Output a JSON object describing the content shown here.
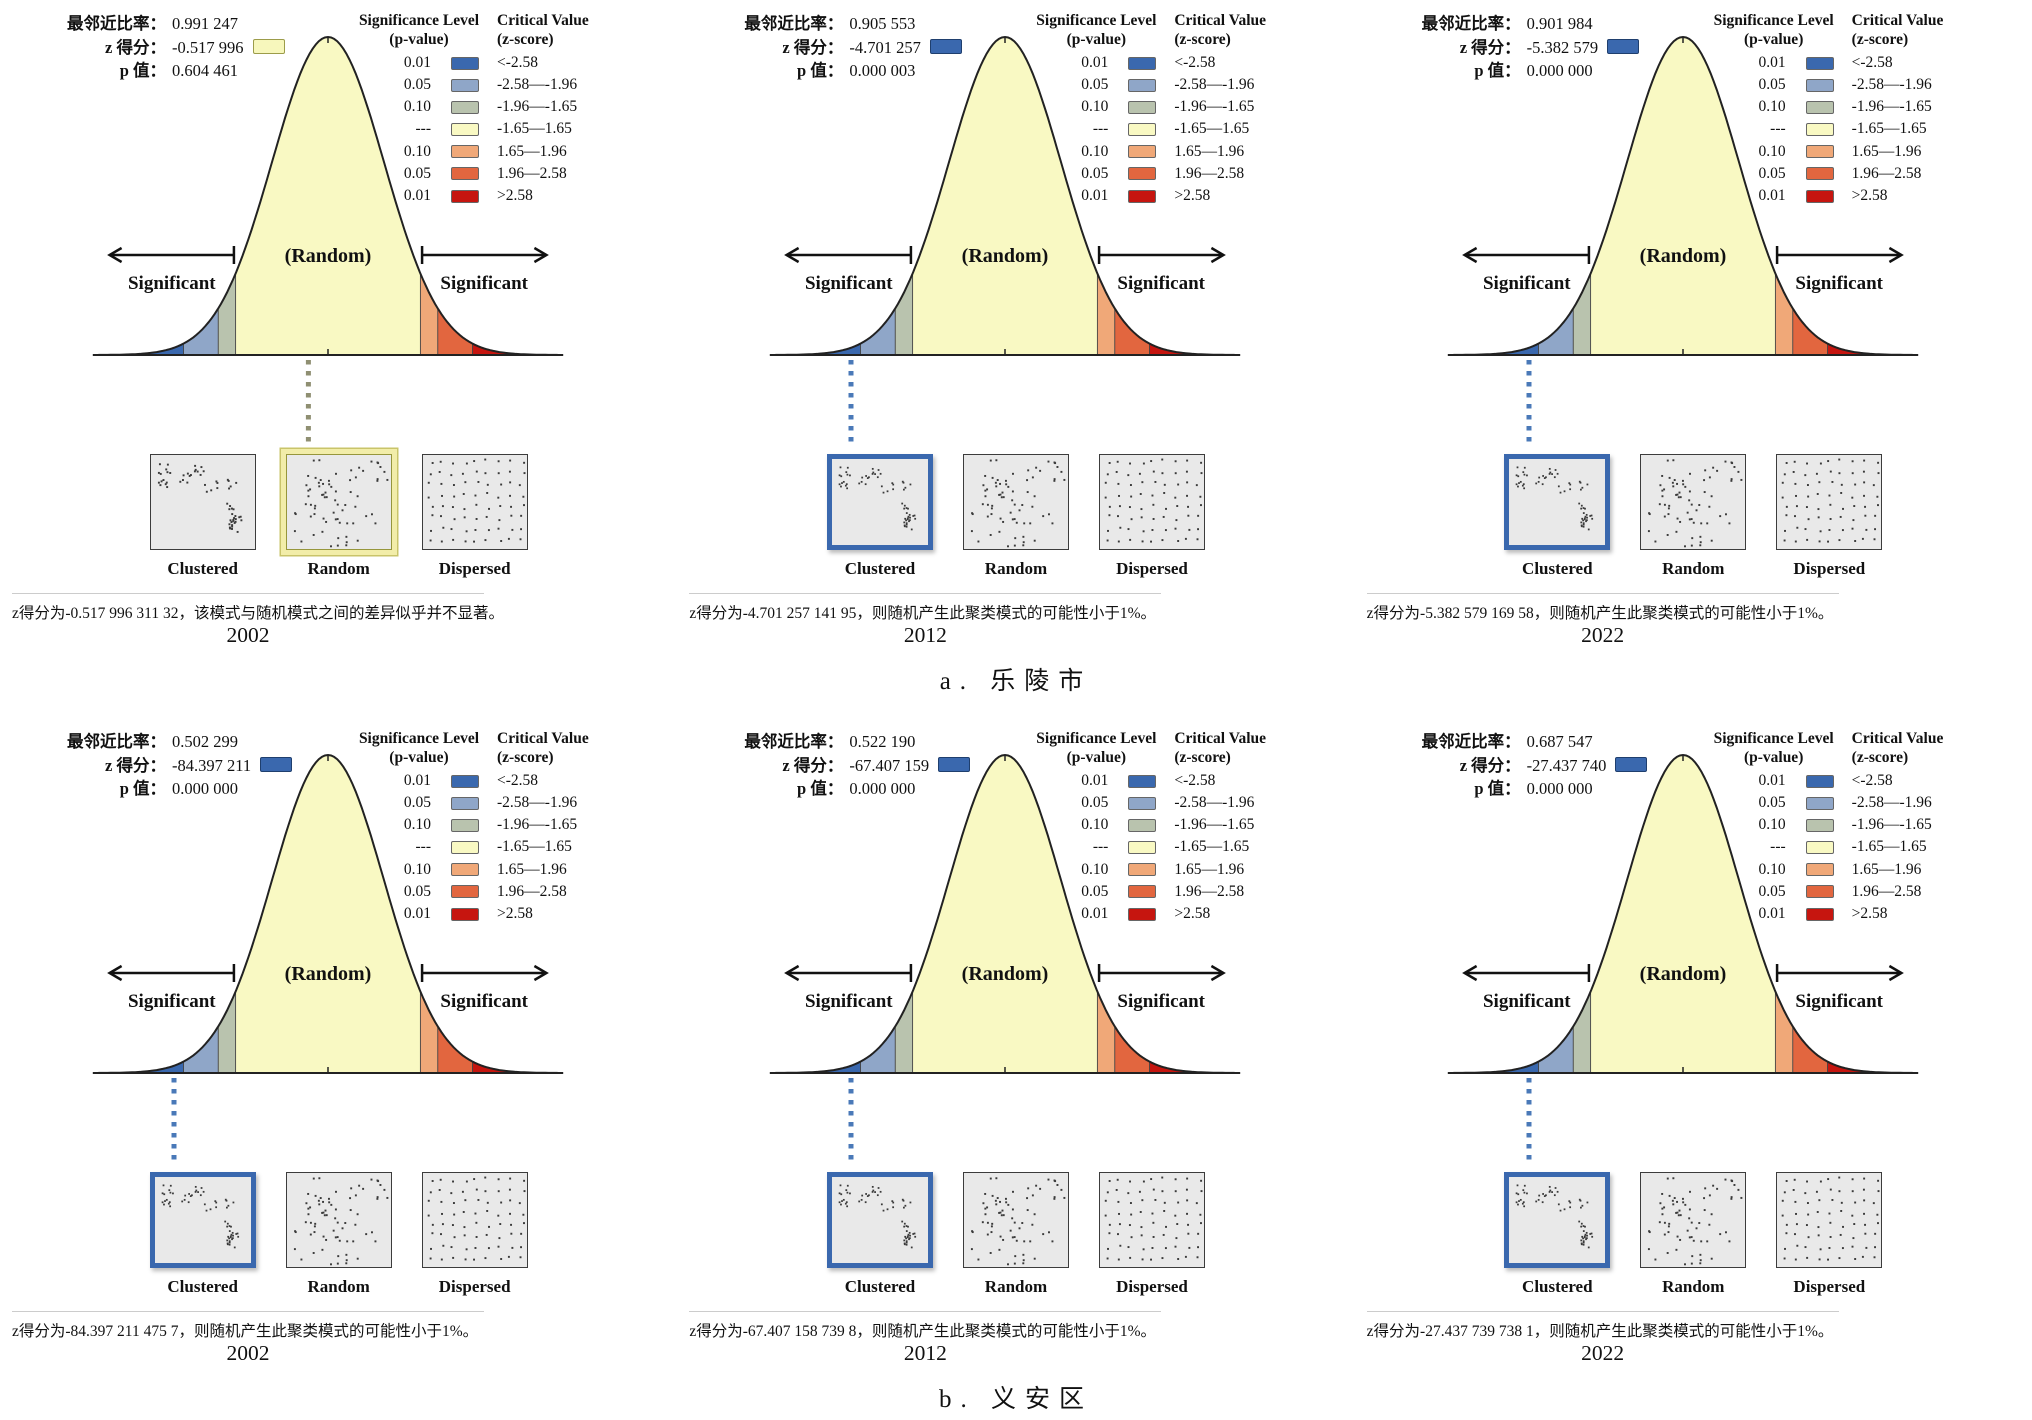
{
  "labels": {
    "ratio": "最邻近比率：",
    "z": "z 得分：",
    "p": "p 值："
  },
  "curve": {
    "random_label": "(Random)",
    "significant_label": "Significant"
  },
  "legend": {
    "sig_title": "Significance Level",
    "sig_sub": "(p-value)",
    "crit_title": "Critical Value",
    "crit_sub": "(z-score)",
    "rows": [
      {
        "p": "0.01",
        "z": "<-2.58",
        "color": "#3a68ae"
      },
      {
        "p": "0.05",
        "z": "-2.58—-1.96",
        "color": "#8fa6c8"
      },
      {
        "p": "0.10",
        "z": "-1.96—-1.65",
        "color": "#b9c3ae"
      },
      {
        "p": "---",
        "z": "-1.65—1.65",
        "color": "#f9f9c3"
      },
      {
        "p": "0.10",
        "z": "1.65—1.96",
        "color": "#f0a878"
      },
      {
        "p": "0.05",
        "z": "1.96—2.58",
        "color": "#e2663f"
      },
      {
        "p": "0.01",
        "z": ">2.58",
        "color": "#c6150f"
      }
    ]
  },
  "box_labels": [
    "Clustered",
    "Random",
    "Dispersed"
  ],
  "sections": [
    {
      "label": "a. 乐陵市",
      "panels": [
        {
          "year": "2002",
          "ratio": "0.991 247",
          "z": "-0.517 996",
          "p": "0.604 461",
          "swatch_fill": "#f7f7bc",
          "swatch_border": "#9c9c4a",
          "highlight": "Random",
          "highlight_style": "yellow",
          "dotted_color": "#8f8f72",
          "caption": "z得分为-0.517 996 311 32，该模式与随机模式之间的差异似乎并不显著。"
        },
        {
          "year": "2012",
          "ratio": "0.905 553",
          "z": "-4.701 257",
          "p": "0.000 003",
          "swatch_fill": "#3a68ae",
          "swatch_border": "#1f3f6e",
          "highlight": "Clustered",
          "highlight_style": "blue",
          "dotted_color": "#4a79b8",
          "caption": "z得分为-4.701 257 141 95，则随机产生此聚类模式的可能性小于1%。"
        },
        {
          "year": "2022",
          "ratio": "0.901 984",
          "z": "-5.382 579",
          "p": "0.000 000",
          "swatch_fill": "#3a68ae",
          "swatch_border": "#1f3f6e",
          "highlight": "Clustered",
          "highlight_style": "blue",
          "dotted_color": "#4a79b8",
          "caption": "z得分为-5.382 579 169 58，则随机产生此聚类模式的可能性小于1%。"
        }
      ]
    },
    {
      "label": "b. 义安区",
      "panels": [
        {
          "year": "2002",
          "ratio": "0.502 299",
          "z": "-84.397 211",
          "p": "0.000 000",
          "swatch_fill": "#3a68ae",
          "swatch_border": "#1f3f6e",
          "highlight": "Clustered",
          "highlight_style": "blue",
          "dotted_color": "#4a79b8",
          "caption": "z得分为-84.397 211 475 7，则随机产生此聚类模式的可能性小于1%。"
        },
        {
          "year": "2012",
          "ratio": "0.522 190",
          "z": "-67.407 159",
          "p": "0.000 000",
          "swatch_fill": "#3a68ae",
          "swatch_border": "#1f3f6e",
          "highlight": "Clustered",
          "highlight_style": "blue",
          "dotted_color": "#4a79b8",
          "caption": "z得分为-67.407 158 739 8，则随机产生此聚类模式的可能性小于1%。"
        },
        {
          "year": "2022",
          "ratio": "0.687 547",
          "z": "-27.437 740",
          "p": "0.000 000",
          "swatch_fill": "#3a68ae",
          "swatch_border": "#1f3f6e",
          "highlight": "Clustered",
          "highlight_style": "blue",
          "dotted_color": "#4a79b8",
          "caption": "z得分为-27.437 739 738 1，则随机产生此聚类模式的可能性小于1%。"
        }
      ]
    }
  ],
  "chart_data": {
    "type": "area",
    "description": "ArcGIS Average Nearest Neighbor significance report: standard normal curves with significance bands; highlighted pattern box shows the detected spatial pattern.",
    "critical_values": [
      -2.58,
      -1.96,
      -1.65,
      1.65,
      1.96,
      2.58
    ],
    "significance_levels": [
      0.01,
      0.05,
      0.1
    ],
    "panels": [
      {
        "region": "乐陵市",
        "year": 2002,
        "nearest_neighbor_ratio": 0.991247,
        "z_score": -0.51799631132,
        "p_value": 0.604461,
        "pattern": "Random"
      },
      {
        "region": "乐陵市",
        "year": 2012,
        "nearest_neighbor_ratio": 0.905553,
        "z_score": -4.70125714195,
        "p_value": 3e-06,
        "pattern": "Clustered"
      },
      {
        "region": "乐陵市",
        "year": 2022,
        "nearest_neighbor_ratio": 0.901984,
        "z_score": -5.38257916958,
        "p_value": 0.0,
        "pattern": "Clustered"
      },
      {
        "region": "义安区",
        "year": 2002,
        "nearest_neighbor_ratio": 0.502299,
        "z_score": -84.3972114757,
        "p_value": 0.0,
        "pattern": "Clustered"
      },
      {
        "region": "义安区",
        "year": 2012,
        "nearest_neighbor_ratio": 0.52219,
        "z_score": -67.4071587398,
        "p_value": 0.0,
        "pattern": "Clustered"
      },
      {
        "region": "义安区",
        "year": 2022,
        "nearest_neighbor_ratio": 0.687547,
        "z_score": -27.4377397381,
        "p_value": 0.0,
        "pattern": "Clustered"
      }
    ]
  }
}
